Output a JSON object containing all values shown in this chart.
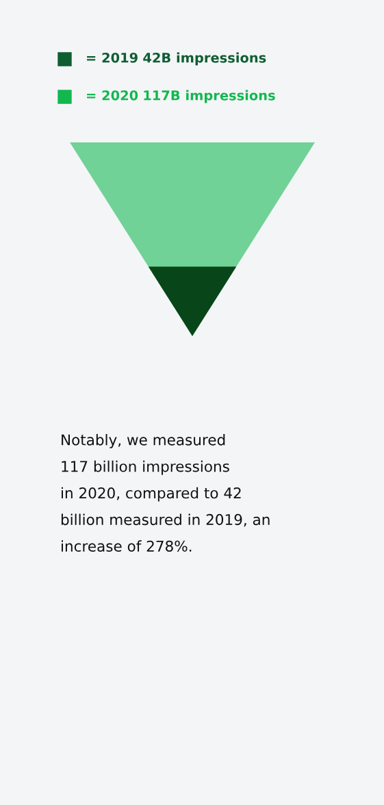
{
  "chart_data": {
    "type": "other",
    "categories": [
      "= 2019",
      "= 2020"
    ],
    "values": [
      42,
      117
    ],
    "value_labels": [
      "42B impressions",
      "117B impressions"
    ],
    "colors": [
      "#0f5e32",
      "#12b84f"
    ],
    "annotations": [
      "Notably, we measured\n117 billion impressions\nin 2020, compared to 42\nbillion measured in 2019, an\nincrease of 278%."
    ]
  }
}
